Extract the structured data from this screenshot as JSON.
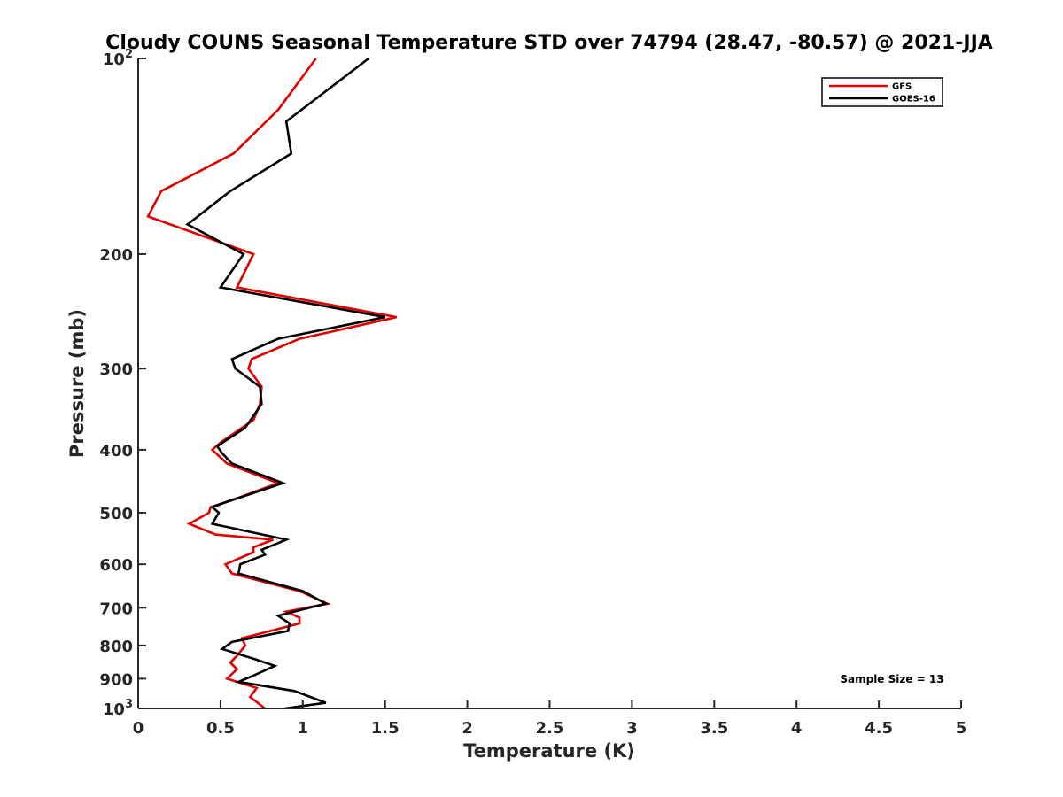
{
  "chart_data": {
    "type": "line",
    "title": "Cloudy COUNS Seasonal Temperature STD over 74794 (28.47, -80.57) @ 2021-JJA",
    "xlabel": "Temperature (K)",
    "ylabel": "Pressure (mb)",
    "xlim": [
      0,
      5
    ],
    "ylim": [
      1000,
      100
    ],
    "yscale": "log",
    "y_reversed": true,
    "grid": false,
    "legend_position": "top-right",
    "x_ticks": [
      0,
      0.5,
      1,
      1.5,
      2,
      2.5,
      3,
      3.5,
      4,
      4.5,
      5
    ],
    "x_tick_labels": [
      "0",
      "0.5",
      "1",
      "1.5",
      "2",
      "2.5",
      "3",
      "3.5",
      "4",
      "4.5",
      "5"
    ],
    "y_ticks": [
      100,
      200,
      300,
      400,
      500,
      600,
      700,
      800,
      900,
      1000
    ],
    "y_tick_labels": [
      {
        "base": "10",
        "exp": "2"
      },
      {
        "base": "200",
        "exp": ""
      },
      {
        "base": "300",
        "exp": ""
      },
      {
        "base": "400",
        "exp": ""
      },
      {
        "base": "500",
        "exp": ""
      },
      {
        "base": "600",
        "exp": ""
      },
      {
        "base": "700",
        "exp": ""
      },
      {
        "base": "800",
        "exp": ""
      },
      {
        "base": "900",
        "exp": ""
      },
      {
        "base": "10",
        "exp": "3"
      }
    ],
    "annotation": "Sample Size = 13",
    "series": [
      {
        "name": "GFS",
        "color": "#e00000",
        "points": [
          [
            1.08,
            100
          ],
          [
            0.85,
            120
          ],
          [
            0.58,
            140
          ],
          [
            0.14,
            160
          ],
          [
            0.06,
            175
          ],
          [
            0.7,
            200
          ],
          [
            0.6,
            225
          ],
          [
            1.57,
            250
          ],
          [
            0.98,
            270
          ],
          [
            0.69,
            290
          ],
          [
            0.67,
            300
          ],
          [
            0.75,
            320
          ],
          [
            0.74,
            340
          ],
          [
            0.7,
            360
          ],
          [
            0.5,
            390
          ],
          [
            0.45,
            400
          ],
          [
            0.54,
            420
          ],
          [
            0.85,
            450
          ],
          [
            0.6,
            475
          ],
          [
            0.44,
            490
          ],
          [
            0.43,
            500
          ],
          [
            0.31,
            520
          ],
          [
            0.47,
            540
          ],
          [
            0.82,
            550
          ],
          [
            0.7,
            565
          ],
          [
            0.7,
            575
          ],
          [
            0.53,
            600
          ],
          [
            0.57,
            620
          ],
          [
            0.98,
            660
          ],
          [
            1.15,
            690
          ],
          [
            0.9,
            710
          ],
          [
            0.98,
            725
          ],
          [
            0.98,
            740
          ],
          [
            0.63,
            780
          ],
          [
            0.65,
            800
          ],
          [
            0.6,
            830
          ],
          [
            0.56,
            850
          ],
          [
            0.6,
            870
          ],
          [
            0.54,
            900
          ],
          [
            0.72,
            930
          ],
          [
            0.68,
            960
          ],
          [
            0.77,
            1000
          ]
        ]
      },
      {
        "name": "GOES-16",
        "color": "#000000",
        "points": [
          [
            1.4,
            100
          ],
          [
            0.9,
            125
          ],
          [
            0.93,
            140
          ],
          [
            0.56,
            160
          ],
          [
            0.3,
            180
          ],
          [
            0.64,
            200
          ],
          [
            0.5,
            225
          ],
          [
            1.5,
            250
          ],
          [
            0.85,
            270
          ],
          [
            0.57,
            290
          ],
          [
            0.59,
            300
          ],
          [
            0.74,
            320
          ],
          [
            0.75,
            340
          ],
          [
            0.65,
            370
          ],
          [
            0.48,
            395
          ],
          [
            0.51,
            405
          ],
          [
            0.57,
            420
          ],
          [
            0.88,
            450
          ],
          [
            0.55,
            480
          ],
          [
            0.45,
            490
          ],
          [
            0.49,
            500
          ],
          [
            0.45,
            520
          ],
          [
            0.9,
            550
          ],
          [
            0.75,
            570
          ],
          [
            0.77,
            580
          ],
          [
            0.62,
            600
          ],
          [
            0.61,
            620
          ],
          [
            1.0,
            660
          ],
          [
            1.14,
            690
          ],
          [
            0.85,
            720
          ],
          [
            0.92,
            740
          ],
          [
            0.91,
            760
          ],
          [
            0.57,
            790
          ],
          [
            0.51,
            810
          ],
          [
            0.71,
            840
          ],
          [
            0.83,
            860
          ],
          [
            0.7,
            890
          ],
          [
            0.61,
            910
          ],
          [
            0.95,
            940
          ],
          [
            1.14,
            980
          ],
          [
            0.89,
            1000
          ]
        ]
      }
    ]
  }
}
